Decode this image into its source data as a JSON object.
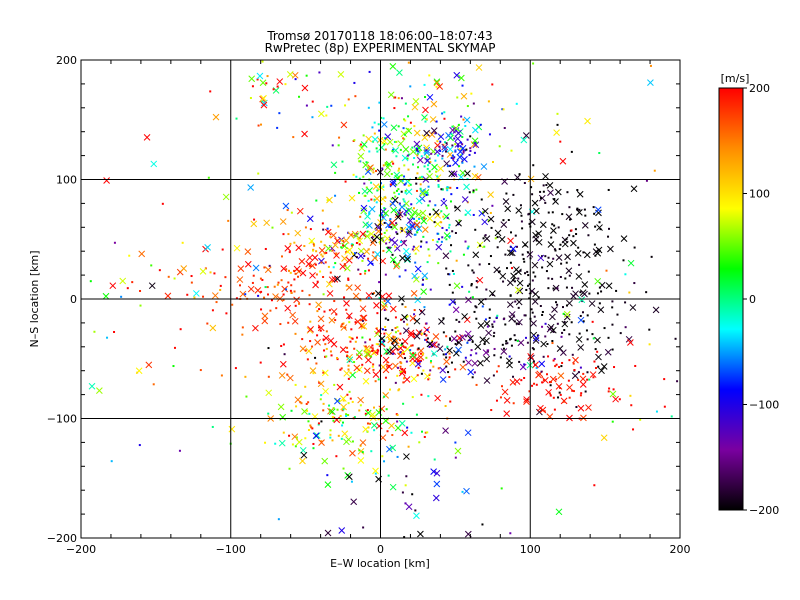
{
  "chart_data": {
    "type": "scatter",
    "title": "Tromsø 20170118 18:06:00–18:07:43",
    "subtitle": "RwPretec (8p) EXPERIMENTAL SKYMAP",
    "xlabel": "E–W location [km]",
    "ylabel": "N–S location [km]",
    "xlim": [
      -200,
      200
    ],
    "ylim": [
      -200,
      200
    ],
    "xticks": [
      "−200",
      "−100",
      "0",
      "100",
      "200"
    ],
    "yticks": [
      "200",
      "100",
      "0",
      "−100",
      "−200"
    ],
    "grid": true,
    "colorbar": {
      "label": "[m/s]",
      "range": [
        -200,
        200
      ],
      "ticks": [
        "200",
        "100",
        "0",
        "−100",
        "−200"
      ],
      "colors": [
        "#000000",
        "#7a00a0",
        "#0000ff",
        "#00ffff",
        "#00ff00",
        "#ffff00",
        "#ff8c00",
        "#ff0000"
      ]
    },
    "clusters": [
      {
        "x": 20,
        "y": 110,
        "sx": 25,
        "sy": 25,
        "v": 40,
        "sv": 70,
        "n": 260
      },
      {
        "x": 45,
        "y": 125,
        "sx": 12,
        "sy": 10,
        "v": -120,
        "sv": 40,
        "n": 60
      },
      {
        "x": 20,
        "y": 55,
        "sx": 25,
        "sy": 25,
        "v": -60,
        "sv": 110,
        "n": 240
      },
      {
        "x": -30,
        "y": 40,
        "sx": 15,
        "sy": 12,
        "v": 130,
        "sv": 60,
        "n": 70
      },
      {
        "x": 110,
        "y": 50,
        "sx": 25,
        "sy": 35,
        "v": -200,
        "sv": 10,
        "n": 200
      },
      {
        "x": 110,
        "y": -15,
        "sx": 35,
        "sy": 30,
        "v": -195,
        "sv": 10,
        "n": 170
      },
      {
        "x": 0,
        "y": -40,
        "sx": 25,
        "sy": 18,
        "v": 170,
        "sv": 80,
        "n": 220
      },
      {
        "x": 50,
        "y": -35,
        "sx": 30,
        "sy": 15,
        "v": -170,
        "sv": 60,
        "n": 120
      },
      {
        "x": -20,
        "y": -100,
        "sx": 25,
        "sy": 20,
        "v": 90,
        "sv": 70,
        "n": 160
      },
      {
        "x": -60,
        "y": 5,
        "sx": 35,
        "sy": 25,
        "v": 180,
        "sv": 30,
        "n": 170
      },
      {
        "x": 110,
        "y": -75,
        "sx": 25,
        "sy": 12,
        "v": 195,
        "sv": 10,
        "n": 80
      },
      {
        "x": -70,
        "y": 170,
        "sx": 20,
        "sy": 15,
        "v": 100,
        "sv": 110,
        "n": 40
      },
      {
        "x": 40,
        "y": 160,
        "sx": 35,
        "sy": 20,
        "v": 50,
        "sv": 120,
        "n": 70
      },
      {
        "x": -140,
        "y": 20,
        "sx": 40,
        "sy": 50,
        "v": 150,
        "sv": 80,
        "n": 40
      },
      {
        "x": 150,
        "y": -50,
        "sx": 35,
        "sy": 40,
        "v": 100,
        "sv": 150,
        "n": 40
      },
      {
        "x": 10,
        "y": -150,
        "sx": 30,
        "sy": 30,
        "v": -100,
        "sv": 100,
        "n": 50
      },
      {
        "x": 0,
        "y": 0,
        "sx": 90,
        "sy": 90,
        "v": 0,
        "sv": 150,
        "n": 120
      }
    ]
  }
}
